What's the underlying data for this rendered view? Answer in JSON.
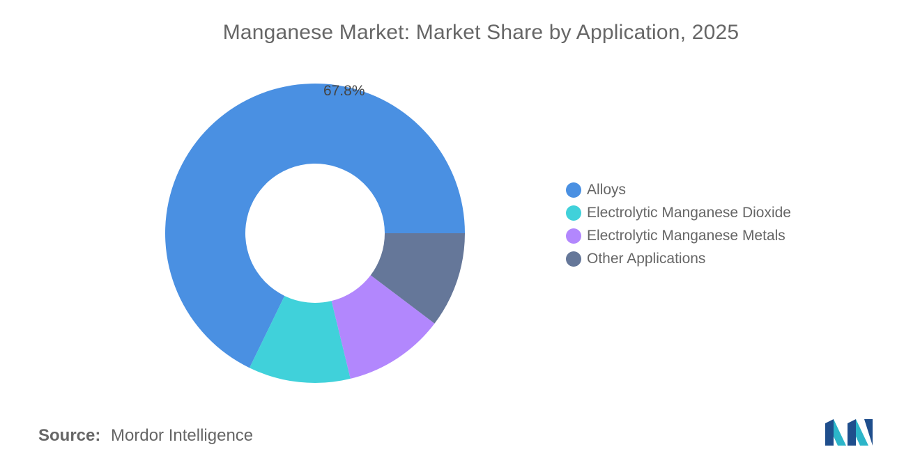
{
  "title": "Manganese Market: Market Share by Application, 2025",
  "chart_data": {
    "type": "pie",
    "donut": true,
    "title": "Manganese Market: Market Share by Application, 2025",
    "categories": [
      "Alloys",
      "Electrolytic Manganese Dioxide",
      "Electrolytic Manganese Metals",
      "Other Applications"
    ],
    "values": [
      67.8,
      11.0,
      10.9,
      10.3
    ],
    "colors": [
      "#4A90E2",
      "#40D1DA",
      "#B287FD",
      "#657799"
    ],
    "data_labels": [
      "67.8%",
      "",
      "",
      ""
    ],
    "legend_position": "right"
  },
  "legend": [
    {
      "label": "Alloys",
      "color": "#4A90E2"
    },
    {
      "label": "Electrolytic Manganese Dioxide",
      "color": "#40D1DA"
    },
    {
      "label": "Electrolytic Manganese Metals",
      "color": "#B287FD"
    },
    {
      "label": "Other Applications",
      "color": "#657799"
    }
  ],
  "source": {
    "label": "Source:",
    "value": "Mordor Intelligence"
  },
  "logo": {
    "icon": "mordor-intelligence-logo",
    "colors": [
      "#1F4E8C",
      "#2CB5C9"
    ]
  }
}
